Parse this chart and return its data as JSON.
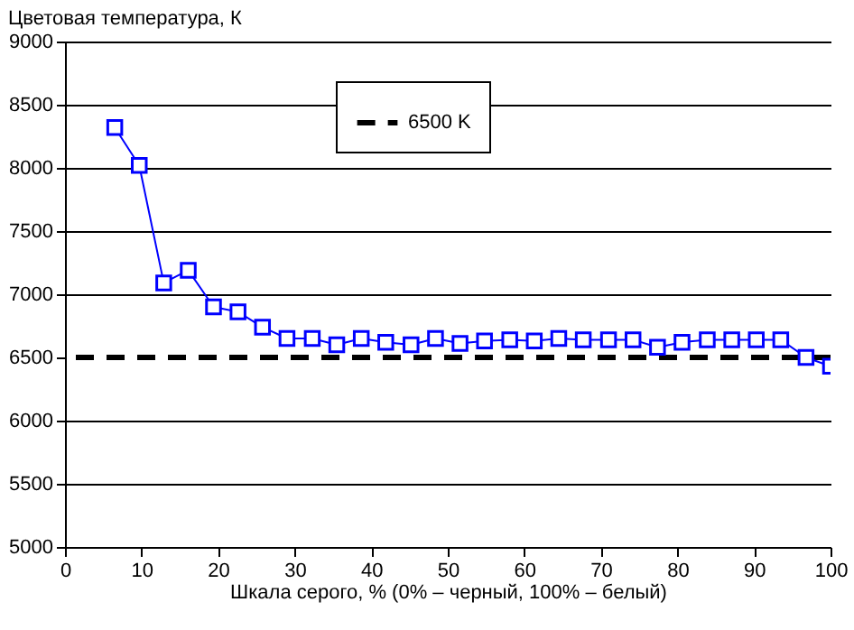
{
  "chart_data": {
    "type": "line",
    "xlabel": "Шкала серого, % (0% – черный, 100% – белый)",
    "ylabel": "Цветовая температура, К",
    "x": [
      6.5,
      9.7,
      12.9,
      16.1,
      19.4,
      22.6,
      25.8,
      29.0,
      32.3,
      35.5,
      38.7,
      41.9,
      45.2,
      48.4,
      51.6,
      54.8,
      58.1,
      61.3,
      64.5,
      67.7,
      71.0,
      74.2,
      77.4,
      80.6,
      83.9,
      87.1,
      90.3,
      93.5,
      96.8,
      100
    ],
    "series": [
      {
        "color": "#0000ff",
        "values": [
          8320,
          8020,
          7090,
          7190,
          6900,
          6860,
          6740,
          6650,
          6650,
          6600,
          6650,
          6620,
          6600,
          6650,
          6610,
          6630,
          6640,
          6630,
          6650,
          6640,
          6640,
          6640,
          6580,
          6620,
          6640,
          6640,
          6640,
          6640,
          6500,
          6430
        ]
      }
    ],
    "marker": "square",
    "xlim": [
      0,
      100
    ],
    "xticks": [
      0,
      10,
      20,
      30,
      40,
      50,
      60,
      70,
      80,
      90,
      100
    ],
    "ylim": [
      5000,
      9000
    ],
    "yticks": [
      5000,
      5500,
      6000,
      6500,
      7000,
      7500,
      8000,
      8500,
      9000
    ],
    "grid": "y",
    "legend": "top right",
    "ref_lines": [
      {
        "axis": "y",
        "value": 6500,
        "label": "6500 K",
        "color": "#000000",
        "line_style": "dashed"
      }
    ]
  }
}
